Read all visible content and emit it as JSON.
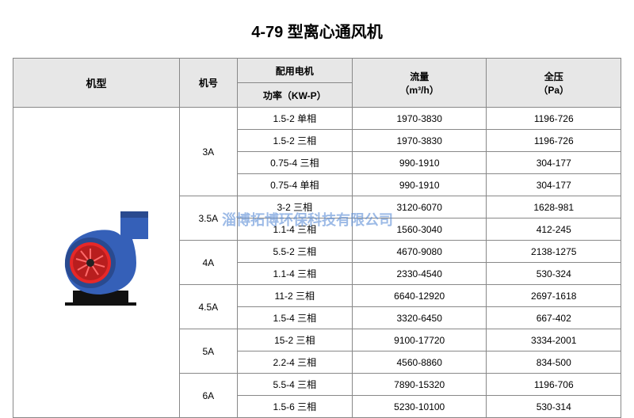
{
  "title": "4-79 型离心通风机",
  "watermark": "淄博拓博环保科技有限公司",
  "headers": {
    "model_type": "机型",
    "model_no": "机号",
    "motor": "配用电机",
    "power": "功率（KW-P）",
    "flow": "流量\n（m³/h）",
    "pressure": "全压\n（Pa）"
  },
  "groups": [
    {
      "model": "3A",
      "rows": [
        {
          "power": "1.5-2 单相",
          "flow": "1970-3830",
          "pressure": "1196-726"
        },
        {
          "power": "1.5-2 三相",
          "flow": "1970-3830",
          "pressure": "1196-726"
        },
        {
          "power": "0.75-4 三相",
          "flow": "990-1910",
          "pressure": "304-177"
        },
        {
          "power": "0.75-4 单相",
          "flow": "990-1910",
          "pressure": "304-177"
        }
      ]
    },
    {
      "model": "3.5A",
      "rows": [
        {
          "power": "3-2 三相",
          "flow": "3120-6070",
          "pressure": "1628-981"
        },
        {
          "power": "1.1-4 三相",
          "flow": "1560-3040",
          "pressure": "412-245"
        }
      ]
    },
    {
      "model": "4A",
      "rows": [
        {
          "power": "5.5-2 三相",
          "flow": "4670-9080",
          "pressure": "2138-1275"
        },
        {
          "power": "1.1-4 三相",
          "flow": "2330-4540",
          "pressure": "530-324"
        }
      ]
    },
    {
      "model": "4.5A",
      "rows": [
        {
          "power": "11-2 三相",
          "flow": "6640-12920",
          "pressure": "2697-1618"
        },
        {
          "power": "1.5-4 三相",
          "flow": "3320-6450",
          "pressure": "667-402"
        }
      ]
    },
    {
      "model": "5A",
      "rows": [
        {
          "power": "15-2 三相",
          "flow": "9100-17720",
          "pressure": "3334-2001"
        },
        {
          "power": "2.2-4 三相",
          "flow": "4560-8860",
          "pressure": "834-500"
        }
      ]
    },
    {
      "model": "6A",
      "rows": [
        {
          "power": "5.5-4 三相",
          "flow": "7890-15320",
          "pressure": "1196-706"
        },
        {
          "power": "1.5-6 三相",
          "flow": "5230-10100",
          "pressure": "530-314"
        }
      ]
    }
  ],
  "colors": {
    "header_bg": "#e7e7e7",
    "border": "#888888",
    "fan_body": "#3560b8",
    "fan_inlet": "#e62828",
    "fan_stand": "#111111",
    "watermark": "#5b8dd6"
  }
}
